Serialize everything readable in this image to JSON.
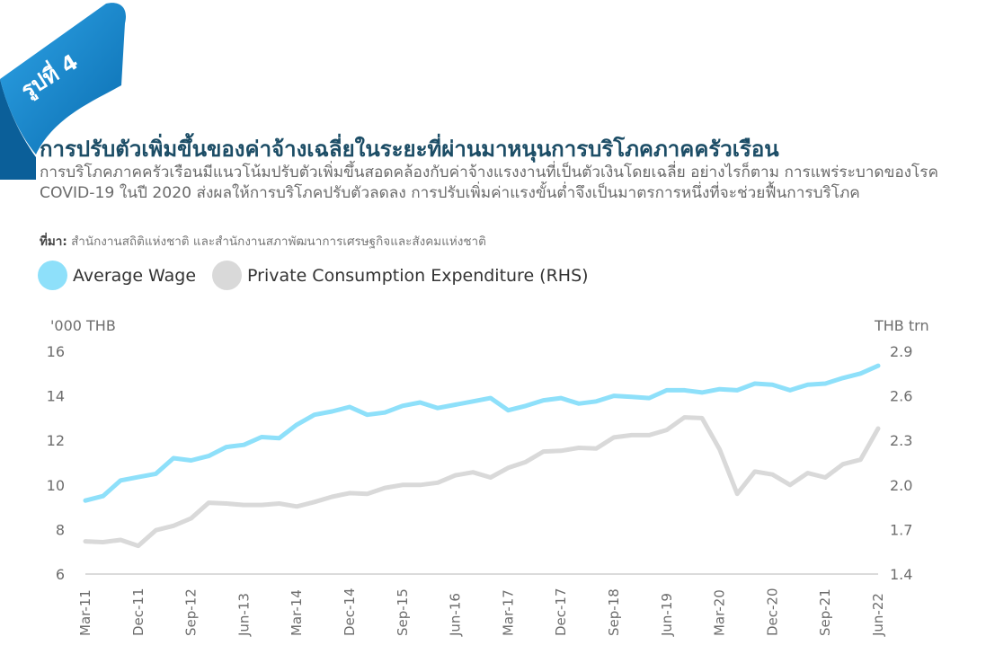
{
  "badge": {
    "label": "รูปที่ 4",
    "color": "#0a82c8"
  },
  "header": {
    "title": "การปรับตัวเพิ่มขึ้นของค่าจ้างเฉลี่ยในระยะที่ผ่านมาหนุนการบริโภคภาคครัวเรือน",
    "subtitle": "การบริโภคภาคครัวเรือนมีแนวโน้มปรับตัวเพิ่มขึ้นสอดคล้องกับค่าจ้างแรงงานที่เป็นตัวเงินโดยเฉลี่ย อย่างไรก็ตาม การแพร่ระบาดของโรค COVID-19 ในปี 2020 ส่งผลให้การบริโภคปรับตัวลดลง การปรับเพิ่มค่าแรงขั้นต่ำจึงเป็นมาตรการหนึ่งที่จะช่วยฟื้นการบริโภค",
    "source_label": "ที่มา:",
    "source_text": " สำนักงานสถิติแห่งชาติ และสำนักงานสภาพัฒนาการเศรษฐกิจและสังคมแห่งชาติ"
  },
  "legend": [
    {
      "label": "Average Wage",
      "color": "#8ee0fa"
    },
    {
      "label": "Private Consumption Expenditure (RHS)",
      "color": "#d9d9d9"
    }
  ],
  "chart_data": {
    "type": "line",
    "ylabel": "'000 THB",
    "y2label": "THB trn",
    "ylim": [
      6,
      16
    ],
    "y_ticks": [
      "6",
      "8",
      "10",
      "12",
      "14",
      "16"
    ],
    "y2lim": [
      1.4,
      2.9
    ],
    "y2_ticks": [
      "1.4",
      "1.7",
      "2.0",
      "2.3",
      "2.6",
      "2.9"
    ],
    "x_tick_labels": [
      "Mar-11",
      "Dec-11",
      "Sep-12",
      "Jun-13",
      "Mar-14",
      "Dec-14",
      "Sep-15",
      "Jun-16",
      "Mar-17",
      "Dec-17",
      "Sep-18",
      "Jun-19",
      "Mar-20",
      "Dec-20",
      "Sep-21",
      "Jun-22"
    ],
    "x_tick_every": 3,
    "series": [
      {
        "name": "Average Wage",
        "axis": "left",
        "color": "#8ee0fa",
        "values": [
          9.3,
          9.5,
          10.2,
          10.35,
          10.5,
          11.2,
          11.1,
          11.3,
          11.7,
          11.8,
          12.15,
          12.1,
          12.7,
          13.15,
          13.3,
          13.5,
          13.15,
          13.25,
          13.55,
          13.7,
          13.45,
          13.6,
          13.75,
          13.9,
          13.35,
          13.55,
          13.8,
          13.9,
          13.65,
          13.75,
          14.0,
          13.95,
          13.9,
          14.25,
          14.25,
          14.15,
          14.3,
          14.25,
          14.55,
          14.5,
          14.25,
          14.5,
          14.55,
          14.8,
          15.0,
          15.35
        ]
      },
      {
        "name": "Private Consumption Expenditure (RHS)",
        "axis": "right",
        "color": "#d9d9d9",
        "values": [
          1.62,
          1.615,
          1.63,
          1.59,
          1.695,
          1.725,
          1.775,
          1.88,
          1.875,
          1.865,
          1.865,
          1.875,
          1.855,
          1.885,
          1.92,
          1.945,
          1.94,
          1.98,
          2.0,
          2.0,
          2.015,
          2.065,
          2.085,
          2.05,
          2.115,
          2.155,
          2.225,
          2.23,
          2.25,
          2.245,
          2.32,
          2.335,
          2.335,
          2.37,
          2.455,
          2.45,
          2.24,
          1.94,
          2.09,
          2.07,
          2.0,
          2.08,
          2.05,
          2.14,
          2.17,
          2.38
        ]
      }
    ],
    "grid": false,
    "legend_position": "top-left"
  }
}
